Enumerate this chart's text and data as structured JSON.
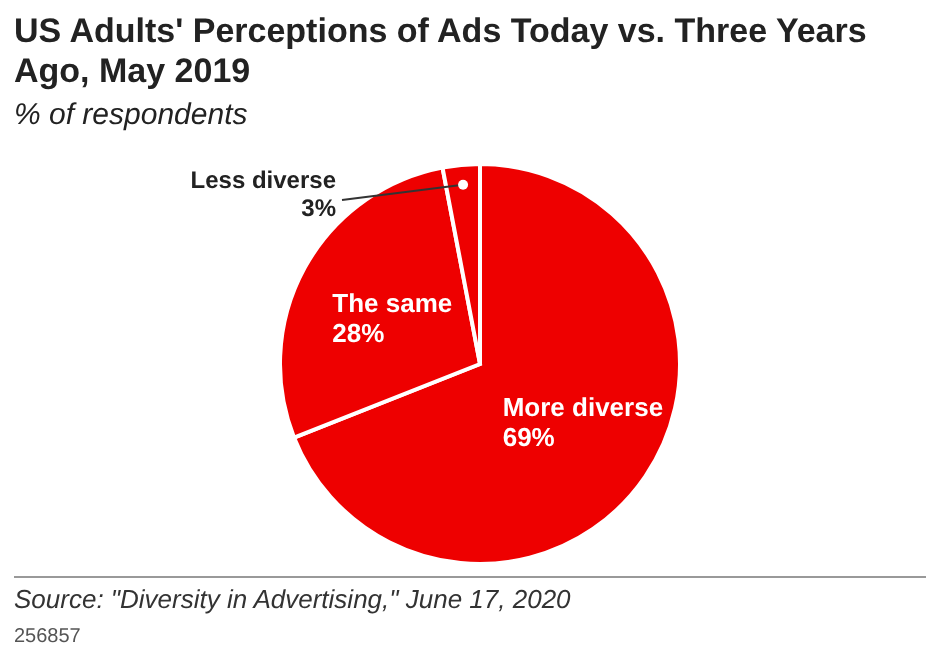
{
  "chart_data": {
    "type": "pie",
    "title": "US Adults' Perceptions of Ads Today vs. Three Years Ago, May 2019",
    "subtitle": "% of respondents",
    "categories": [
      "More diverse",
      "The same",
      "Less diverse"
    ],
    "values": [
      69,
      28,
      3
    ],
    "value_labels": [
      "69%",
      "28%",
      "3%"
    ],
    "colors": [
      "#ee0000",
      "#ee0000",
      "#ee0000"
    ],
    "legend": false,
    "annotations": [
      "Source: \"Diversity in Advertising,\" June 17, 2020",
      "256857"
    ]
  }
}
